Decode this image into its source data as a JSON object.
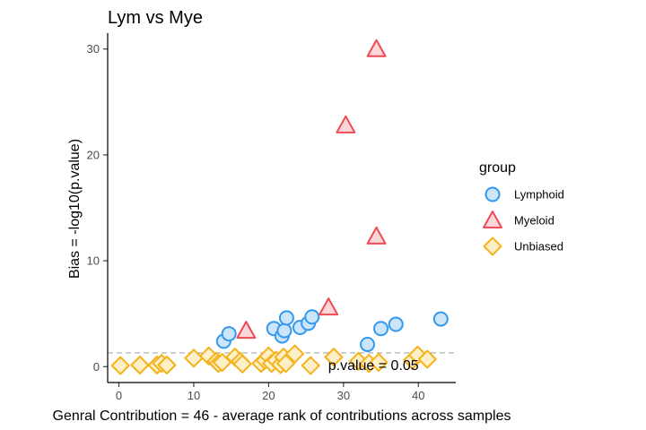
{
  "chart_data": {
    "type": "scatter",
    "title": "Lym vs Mye",
    "xlabel": "Genral Contribution = 46 - average rank of contributions across samples",
    "ylabel": "Bias = -log10(p.value)",
    "xlim": [
      -1.5,
      45
    ],
    "ylim": [
      -1.5,
      31.5
    ],
    "xticks": [
      0,
      10,
      20,
      30,
      40
    ],
    "yticks": [
      0,
      10,
      20,
      30
    ],
    "grid": false,
    "legend": {
      "title": "group",
      "placement": "right",
      "entries": [
        {
          "name": "Lymphoid",
          "shape": "circle",
          "stroke": "#3399ee",
          "fill": "#cce5fa"
        },
        {
          "name": "Myeloid",
          "shape": "triangle",
          "stroke": "#f04a55",
          "fill": "#fbd7d9"
        },
        {
          "name": "Unbiased",
          "shape": "diamond",
          "stroke": "#f5b21a",
          "fill": "#fdf0c8"
        }
      ]
    },
    "reference_line": {
      "y": 1.3,
      "label": "p.value = 0.05",
      "label_x": 34,
      "label_y": 0.1
    },
    "series": [
      {
        "name": "Lymphoid",
        "points": [
          [
            14,
            2.4
          ],
          [
            14.7,
            3.1
          ],
          [
            20.7,
            3.6
          ],
          [
            21.8,
            2.9
          ],
          [
            22.1,
            3.4
          ],
          [
            22.4,
            4.6
          ],
          [
            24.2,
            3.7
          ],
          [
            25.3,
            4.1
          ],
          [
            25.8,
            4.7
          ],
          [
            33.2,
            2.1
          ],
          [
            35,
            3.6
          ],
          [
            37,
            4.0
          ],
          [
            43,
            4.5
          ]
        ]
      },
      {
        "name": "Myeloid",
        "points": [
          [
            17,
            3.4
          ],
          [
            28,
            5.6
          ],
          [
            30.3,
            22.8
          ],
          [
            34.4,
            12.3
          ],
          [
            34.4,
            30.0
          ]
        ]
      },
      {
        "name": "Unbiased",
        "points": [
          [
            0.2,
            0.1
          ],
          [
            2.8,
            0.15
          ],
          [
            5.1,
            0.15
          ],
          [
            5.7,
            0.3
          ],
          [
            6.4,
            0.15
          ],
          [
            10,
            0.8
          ],
          [
            12,
            1.0
          ],
          [
            13,
            0.5
          ],
          [
            13.3,
            0.3
          ],
          [
            13.8,
            0.4
          ],
          [
            15.5,
            0.9
          ],
          [
            16.2,
            0.5
          ],
          [
            16.5,
            0.25
          ],
          [
            19,
            0.3
          ],
          [
            19.5,
            0.6
          ],
          [
            20,
            1.0
          ],
          [
            20.4,
            0.3
          ],
          [
            21,
            0.6
          ],
          [
            21.6,
            0.2
          ],
          [
            22,
            0.9
          ],
          [
            22.3,
            0.3
          ],
          [
            23.5,
            1.2
          ],
          [
            25.6,
            0.1
          ],
          [
            28.7,
            0.9
          ],
          [
            32,
            0.5
          ],
          [
            33.4,
            0.3
          ],
          [
            34.7,
            0.4
          ],
          [
            39.2,
            0.6
          ],
          [
            39.9,
            1.1
          ],
          [
            41.2,
            0.7
          ]
        ]
      }
    ]
  }
}
